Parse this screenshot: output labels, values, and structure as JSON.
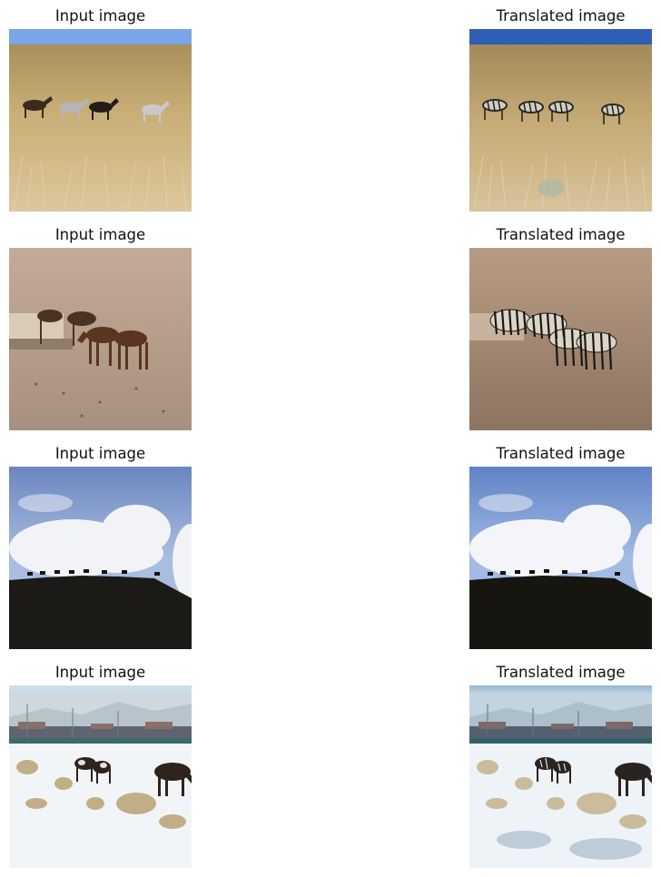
{
  "figure": {
    "rows": [
      {
        "input_title": "Input image",
        "output_title": "Translated image"
      },
      {
        "input_title": "Input image",
        "output_title": "Translated image"
      },
      {
        "input_title": "Input image",
        "output_title": "Translated image"
      },
      {
        "input_title": "Input image",
        "output_title": "Translated image"
      }
    ]
  },
  "colors": {
    "background": "#ffffff",
    "title_text": "#111111",
    "grass": "#c9ad72",
    "sky_blue": "#6f9ee3",
    "sand": "#b9a08d",
    "night_ground": "#1a1813",
    "snow": "#f2f5f8"
  }
}
